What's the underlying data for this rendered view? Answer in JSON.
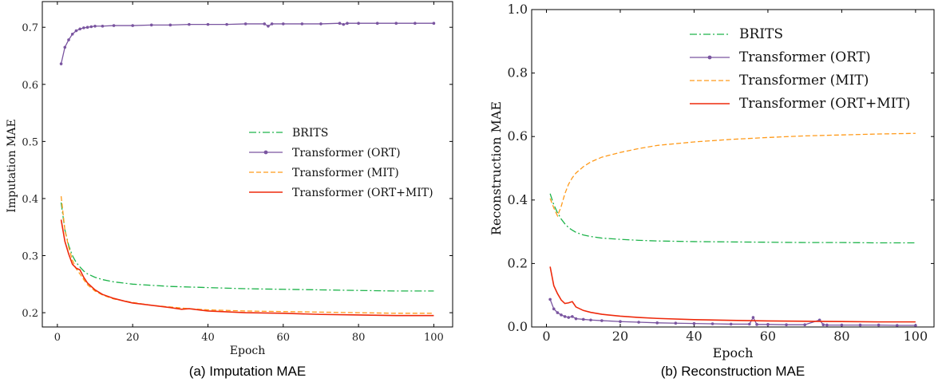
{
  "colors": {
    "brits": "#1db34a",
    "ort": "#7a55a0",
    "mit": "#ff9a1a",
    "ortmit": "#ee2a0c"
  },
  "chart_data": [
    {
      "type": "line",
      "caption": "(a) Imputation MAE",
      "xlabel": "Epoch",
      "ylabel": "Imputation MAE",
      "xlim": [
        -4,
        105
      ],
      "ylim": [
        0.175,
        0.745
      ],
      "xticks": [
        0,
        20,
        40,
        60,
        80,
        100
      ],
      "yticks": [
        0.2,
        0.3,
        0.4,
        0.5,
        0.6,
        0.7
      ],
      "ytick_labels": [
        "0.2",
        "0.3",
        "0.4",
        "0.5",
        "0.6",
        "0.7"
      ],
      "legend_position": "center-right",
      "series": [
        {
          "name": "BRITS",
          "style": "dashdot",
          "marker": false,
          "x": [
            1,
            2,
            3,
            4,
            5,
            6,
            7,
            8,
            10,
            12,
            15,
            20,
            25,
            30,
            40,
            50,
            60,
            70,
            80,
            90,
            100
          ],
          "values": [
            0.393,
            0.345,
            0.318,
            0.3,
            0.288,
            0.28,
            0.273,
            0.268,
            0.262,
            0.258,
            0.254,
            0.25,
            0.248,
            0.246,
            0.244,
            0.242,
            0.241,
            0.24,
            0.239,
            0.238,
            0.238
          ]
        },
        {
          "name": "Transformer (ORT)",
          "style": "solid",
          "marker": true,
          "x": [
            1,
            2,
            3,
            4,
            5,
            6,
            7,
            8,
            9,
            10,
            12,
            15,
            20,
            25,
            30,
            35,
            40,
            45,
            50,
            55,
            56,
            57,
            60,
            65,
            70,
            75,
            76,
            77,
            80,
            85,
            90,
            95,
            100
          ],
          "values": [
            0.636,
            0.665,
            0.678,
            0.688,
            0.694,
            0.697,
            0.699,
            0.7,
            0.701,
            0.702,
            0.702,
            0.703,
            0.703,
            0.704,
            0.704,
            0.705,
            0.705,
            0.705,
            0.706,
            0.706,
            0.702,
            0.706,
            0.706,
            0.706,
            0.706,
            0.707,
            0.705,
            0.707,
            0.707,
            0.707,
            0.707,
            0.707,
            0.707
          ]
        },
        {
          "name": "Transformer (MIT)",
          "style": "dashed",
          "marker": false,
          "x": [
            1,
            2,
            3,
            4,
            5,
            6,
            7,
            8,
            10,
            12,
            15,
            20,
            25,
            30,
            35,
            40,
            50,
            60,
            70,
            80,
            90,
            100
          ],
          "values": [
            0.404,
            0.345,
            0.315,
            0.292,
            0.277,
            0.268,
            0.258,
            0.249,
            0.238,
            0.231,
            0.224,
            0.218,
            0.213,
            0.21,
            0.207,
            0.205,
            0.203,
            0.202,
            0.201,
            0.2,
            0.199,
            0.199
          ]
        },
        {
          "name": "Transformer (ORT+MIT)",
          "style": "solid",
          "marker": false,
          "x": [
            1,
            2,
            3,
            4,
            5,
            6,
            7,
            8,
            10,
            12,
            15,
            18,
            20,
            25,
            30,
            33,
            35,
            40,
            50,
            60,
            70,
            80,
            90,
            100
          ],
          "values": [
            0.363,
            0.325,
            0.303,
            0.285,
            0.278,
            0.275,
            0.262,
            0.252,
            0.24,
            0.232,
            0.225,
            0.22,
            0.217,
            0.213,
            0.209,
            0.206,
            0.207,
            0.203,
            0.2,
            0.199,
            0.197,
            0.196,
            0.195,
            0.195
          ]
        }
      ]
    },
    {
      "type": "line",
      "caption": "(b) Reconstruction MAE",
      "xlabel": "Epoch",
      "ylabel": "Reconstruction MAE",
      "xlim": [
        -4,
        105
      ],
      "ylim": [
        0.0,
        1.0
      ],
      "xticks": [
        0,
        20,
        40,
        60,
        80,
        100
      ],
      "yticks": [
        0.0,
        0.2,
        0.4,
        0.6,
        0.8,
        1.0
      ],
      "ytick_labels": [
        "0.0",
        "0.2",
        "0.4",
        "0.6",
        "0.8",
        "1.0"
      ],
      "legend_position": "top-center",
      "series": [
        {
          "name": "BRITS",
          "style": "dashdot",
          "marker": false,
          "x": [
            1,
            2,
            3,
            4,
            5,
            6,
            7,
            8,
            10,
            12,
            15,
            20,
            25,
            30,
            40,
            50,
            60,
            70,
            80,
            90,
            100
          ],
          "values": [
            0.42,
            0.385,
            0.36,
            0.34,
            0.325,
            0.313,
            0.305,
            0.298,
            0.29,
            0.285,
            0.28,
            0.276,
            0.273,
            0.271,
            0.269,
            0.268,
            0.267,
            0.266,
            0.266,
            0.265,
            0.265
          ]
        },
        {
          "name": "Transformer (ORT)",
          "style": "solid",
          "marker": true,
          "x": [
            1,
            2,
            3,
            4,
            5,
            6,
            7,
            8,
            10,
            12,
            15,
            20,
            25,
            30,
            35,
            40,
            45,
            50,
            55,
            56,
            57,
            60,
            65,
            70,
            74,
            75,
            76,
            80,
            85,
            90,
            95,
            100
          ],
          "values": [
            0.087,
            0.057,
            0.045,
            0.038,
            0.033,
            0.03,
            0.033,
            0.026,
            0.024,
            0.022,
            0.02,
            0.017,
            0.015,
            0.013,
            0.012,
            0.011,
            0.01,
            0.009,
            0.009,
            0.03,
            0.008,
            0.008,
            0.007,
            0.007,
            0.022,
            0.007,
            0.006,
            0.006,
            0.006,
            0.006,
            0.005,
            0.005
          ]
        },
        {
          "name": "Transformer (MIT)",
          "style": "dashed",
          "marker": false,
          "x": [
            1,
            2,
            3,
            4,
            5,
            6,
            7,
            8,
            10,
            12,
            15,
            20,
            25,
            30,
            40,
            50,
            60,
            70,
            80,
            90,
            100
          ],
          "values": [
            0.405,
            0.375,
            0.35,
            0.38,
            0.42,
            0.45,
            0.47,
            0.485,
            0.505,
            0.52,
            0.535,
            0.55,
            0.562,
            0.572,
            0.583,
            0.591,
            0.597,
            0.602,
            0.605,
            0.608,
            0.61
          ]
        },
        {
          "name": "Transformer (ORT+MIT)",
          "style": "solid",
          "marker": false,
          "x": [
            1,
            2,
            3,
            4,
            5,
            6,
            7,
            8,
            10,
            12,
            15,
            20,
            25,
            30,
            40,
            50,
            60,
            70,
            80,
            90,
            100
          ],
          "values": [
            0.19,
            0.13,
            0.105,
            0.085,
            0.074,
            0.076,
            0.08,
            0.063,
            0.052,
            0.046,
            0.04,
            0.034,
            0.03,
            0.027,
            0.023,
            0.021,
            0.019,
            0.018,
            0.017,
            0.016,
            0.016
          ]
        }
      ]
    }
  ]
}
